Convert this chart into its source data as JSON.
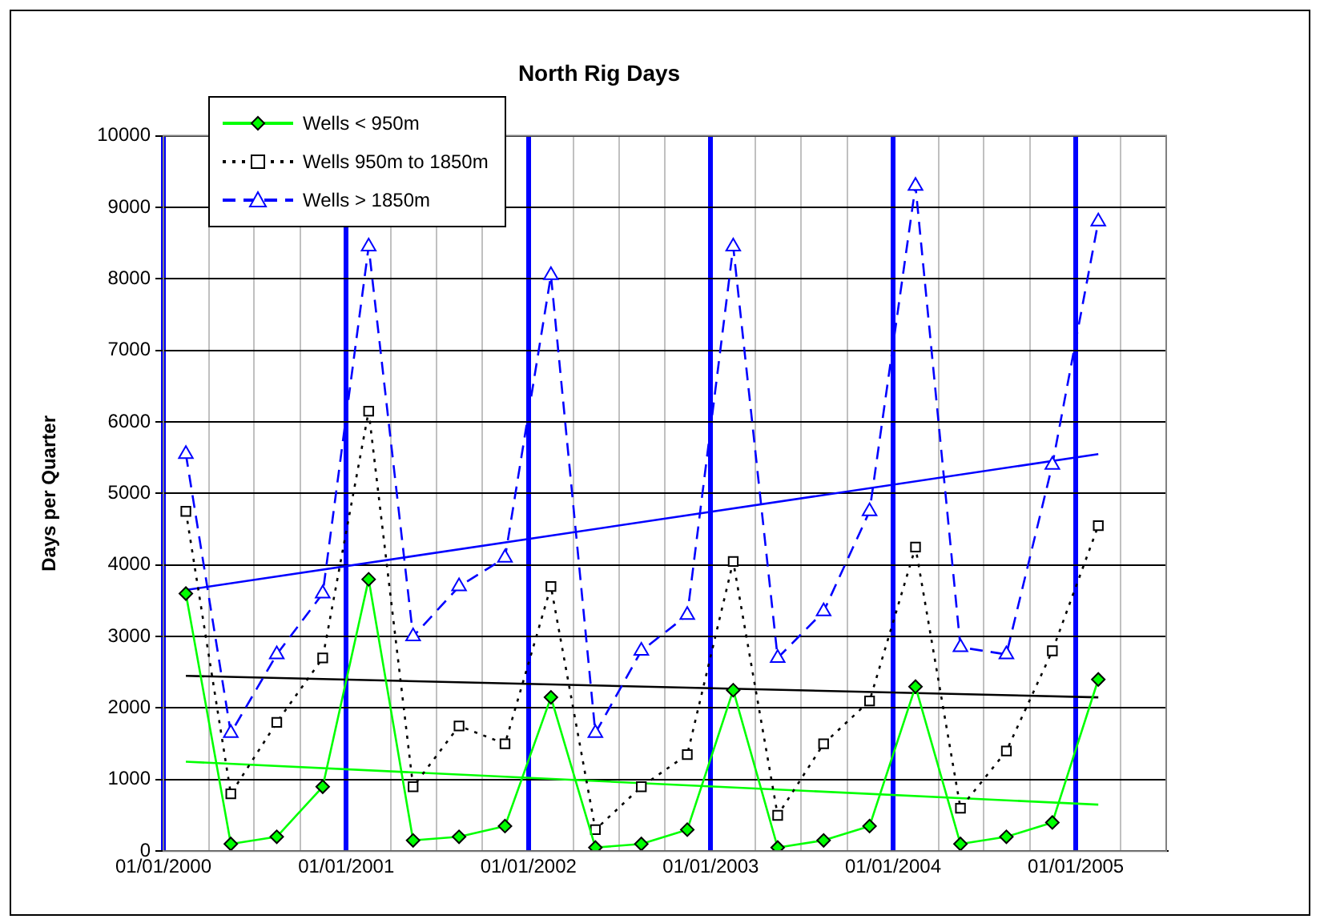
{
  "chart_data": {
    "type": "line",
    "title": "North Rig Days",
    "ylabel": "Days per Quarter",
    "x": [
      "2000-02-15",
      "2000-05-15",
      "2000-08-15",
      "2000-11-15",
      "2001-02-15",
      "2001-05-15",
      "2001-08-15",
      "2001-11-15",
      "2002-02-15",
      "2002-05-15",
      "2002-08-15",
      "2002-11-15",
      "2003-02-15",
      "2003-05-15",
      "2003-08-15",
      "2003-11-15",
      "2004-02-15",
      "2004-05-15",
      "2004-08-15",
      "2004-11-15",
      "2005-02-15"
    ],
    "series": [
      {
        "name": "Wells < 950m",
        "color": "#00ff00",
        "marker": "diamond",
        "line_style": "solid",
        "values": [
          3600,
          100,
          200,
          900,
          3800,
          150,
          200,
          350,
          2150,
          50,
          100,
          300,
          2250,
          50,
          150,
          350,
          2300,
          100,
          200,
          400,
          2400
        ]
      },
      {
        "name": "Wells 950m to 1850m",
        "color": "#000000",
        "marker": "square",
        "line_style": "dotted",
        "values": [
          4750,
          800,
          1800,
          2700,
          6150,
          900,
          1750,
          1500,
          3700,
          300,
          900,
          1350,
          4050,
          500,
          1500,
          2100,
          4250,
          600,
          1400,
          2800,
          4550
        ]
      },
      {
        "name": "Wells > 1850m",
        "color": "#0000ff",
        "marker": "triangle",
        "line_style": "dashed",
        "values": [
          5550,
          1650,
          2750,
          3600,
          8450,
          3000,
          3700,
          4100,
          8050,
          1650,
          2800,
          3300,
          8450,
          2700,
          3350,
          4750,
          9300,
          2850,
          2750,
          5400,
          8800
        ]
      },
      {
        "type": "line",
        "color": "#00ff00",
        "marker": "none",
        "line_style": "solid",
        "x": [
          "2000-02-15",
          "2005-02-15"
        ],
        "values": [
          1250,
          650
        ]
      },
      {
        "type": "line",
        "color": "#000000",
        "marker": "none",
        "line_style": "solid",
        "x": [
          "2000-02-15",
          "2005-02-15"
        ],
        "values": [
          2450,
          2150
        ]
      },
      {
        "type": "line",
        "color": "#0000ff",
        "marker": "none",
        "line_style": "solid",
        "x": [
          "2000-02-15",
          "2005-02-15"
        ],
        "values": [
          3650,
          5550
        ]
      }
    ],
    "xlim": [
      "2000-01-01",
      "2005-07-01"
    ],
    "xticks": [
      {
        "value": "2000-01-01",
        "label": "01/01/2000"
      },
      {
        "value": "2000-04-01",
        "label": null
      },
      {
        "value": "2000-07-01",
        "label": null
      },
      {
        "value": "2000-10-01",
        "label": null
      },
      {
        "value": "2001-01-01",
        "label": "01/01/2001"
      },
      {
        "value": "2001-04-01",
        "label": null
      },
      {
        "value": "2001-07-01",
        "label": null
      },
      {
        "value": "2001-10-01",
        "label": null
      },
      {
        "value": "2002-01-01",
        "label": "01/01/2002"
      },
      {
        "value": "2002-04-01",
        "label": null
      },
      {
        "value": "2002-07-01",
        "label": null
      },
      {
        "value": "2002-10-01",
        "label": null
      },
      {
        "value": "2003-01-01",
        "label": "01/01/2003"
      },
      {
        "value": "2003-04-01",
        "label": null
      },
      {
        "value": "2003-07-01",
        "label": null
      },
      {
        "value": "2003-10-01",
        "label": null
      },
      {
        "value": "2004-01-01",
        "label": "01/01/2004"
      },
      {
        "value": "2004-04-01",
        "label": null
      },
      {
        "value": "2004-07-01",
        "label": null
      },
      {
        "value": "2004-10-01",
        "label": null
      },
      {
        "value": "2005-01-01",
        "label": "01/01/2005"
      },
      {
        "value": "2005-04-01",
        "label": null
      }
    ],
    "ylim": [
      0,
      10000
    ],
    "yticks": [
      0,
      1000,
      2000,
      3000,
      4000,
      5000,
      6000,
      7000,
      8000,
      9000,
      10000
    ],
    "grid": true,
    "legend": "top left"
  }
}
